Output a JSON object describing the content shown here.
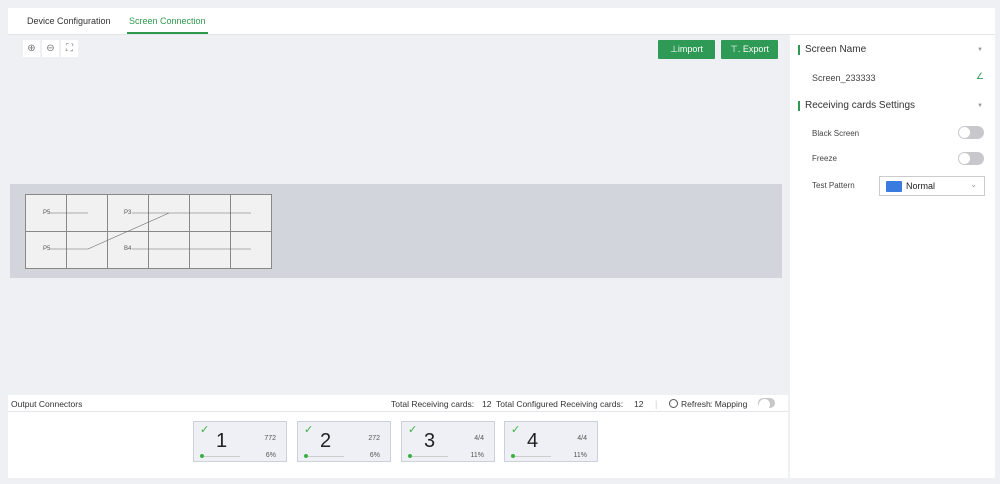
{
  "tabs": [
    {
      "label": "Device Configuration",
      "active": false
    },
    {
      "label": "Screen Connection",
      "active": true
    }
  ],
  "toolbar": {
    "zoom_in": "zoom-in-icon",
    "zoom_out": "zoom-out-icon",
    "fit": "fit-screen-icon",
    "import_label": "⊥import",
    "export_label": "⊤. Export"
  },
  "canvas": {
    "ports": [
      "P5",
      "P3",
      "P5",
      "B4"
    ]
  },
  "right_panel": {
    "screen_name_title": "Screen Name",
    "screen_name": "Screen_233333",
    "receiving_title": "Receiving cards Settings",
    "black_screen_label": "Black Screen",
    "black_screen_on": false,
    "freeze_label": "Freeze",
    "freeze_on": false,
    "test_pattern_label": "Test Pattern",
    "test_pattern_value": "Normal"
  },
  "output": {
    "title": "Output Connectors",
    "total_label": "Total Receiving cards:",
    "total_value": "12",
    "configured_label": "Total Configured Receiving cards:",
    "configured_value": "12",
    "refresh_label": "Refresh",
    "mapping_label": ": Mapping",
    "mapping_on": false,
    "connectors": [
      {
        "number": "1",
        "count": "772",
        "percent": "6%"
      },
      {
        "number": "2",
        "count": "272",
        "percent": "6%"
      },
      {
        "number": "3",
        "count": "4/4",
        "percent": "11%"
      },
      {
        "number": "4",
        "count": "4/4",
        "percent": "11%"
      }
    ]
  },
  "colors": {
    "accent": "#2f9a55",
    "check": "#3cb043"
  }
}
